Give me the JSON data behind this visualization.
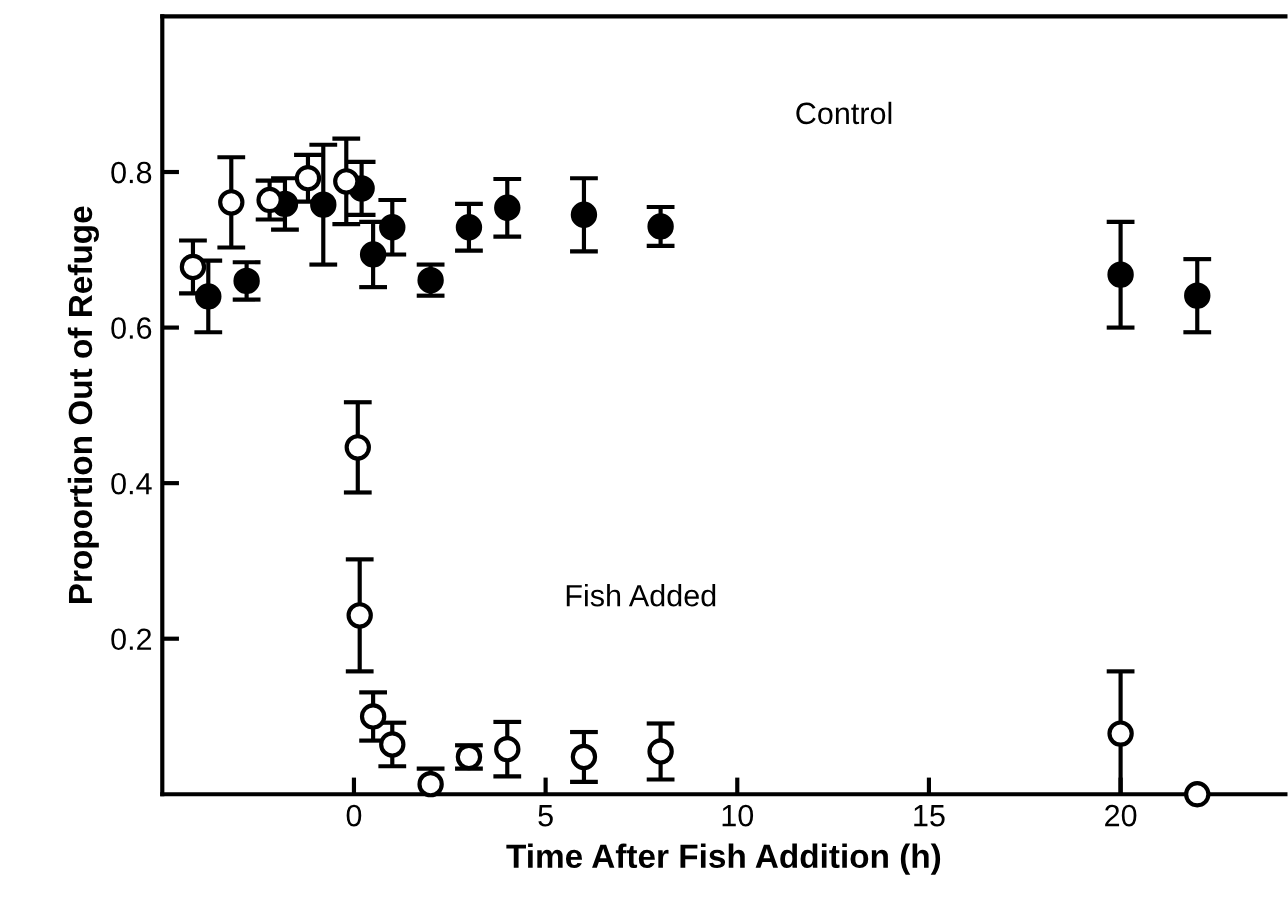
{
  "chart_data": {
    "type": "scatter",
    "xlabel": "Time After Fish Addition (h)",
    "ylabel": "Proportion Out of Refuge",
    "xlim": [
      -5,
      24.3
    ],
    "ylim": [
      0,
      1
    ],
    "xticks": [
      0,
      5,
      10,
      15,
      20
    ],
    "yticks": [
      0.2,
      0.4,
      0.6,
      0.8
    ],
    "grid": false,
    "marker": "circle",
    "series": [
      {
        "color": "#000000",
        "x": [
          -3.8,
          -2.8,
          -1.8,
          -0.8,
          0.2,
          0.5,
          1,
          2,
          3,
          4,
          6,
          8,
          20,
          22
        ],
        "values": [
          0.64,
          0.66,
          0.759,
          0.758,
          0.779,
          0.694,
          0.729,
          0.661,
          0.729,
          0.754,
          0.745,
          0.73,
          0.668,
          0.641
        ],
        "errors": [
          0.046,
          0.024,
          0.033,
          0.077,
          0.034,
          0.042,
          0.035,
          0.02,
          0.03,
          0.037,
          0.047,
          0.025,
          0.068,
          0.047
        ]
      },
      {
        "color": "#ffffff",
        "x": [
          -4.2,
          -3.2,
          -2.2,
          -1.2,
          -0.2,
          0.1,
          0.15,
          0.5,
          1,
          2,
          3,
          4,
          6,
          8,
          20,
          22
        ],
        "values": [
          0.678,
          0.761,
          0.764,
          0.792,
          0.788,
          0.446,
          0.23,
          0.1,
          0.064,
          0.013,
          0.048,
          0.058,
          0.048,
          0.055,
          0.078,
          0
        ],
        "errors": [
          0.034,
          0.058,
          0.025,
          0.03,
          0.055,
          0.058,
          0.072,
          0.031,
          0.028,
          0.02,
          0.015,
          0.035,
          0.032,
          0.036,
          0.08,
          null
        ]
      }
    ],
    "annotations": [
      "Control",
      "Fish Added"
    ]
  }
}
